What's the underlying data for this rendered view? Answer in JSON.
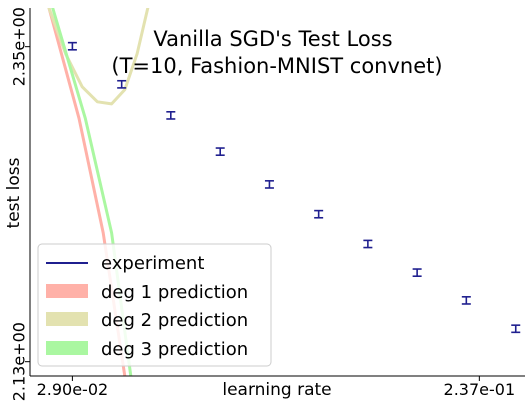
{
  "chart_data": {
    "type": "scatter",
    "title": "Vanilla SGD's Test Loss",
    "subtitle": "(T=10, Fashion-MNIST convnet)",
    "xlabel": "learning rate",
    "ylabel": "test loss",
    "x_scale": "log",
    "xlim": [
      0.0233,
      0.3
    ],
    "ylim": [
      2.12,
      2.377
    ],
    "x_ticks": [
      {
        "value": 0.029,
        "label": "2.90e-02"
      },
      {
        "value": 0.237,
        "label": "2.37e-01"
      }
    ],
    "y_ticks": [
      {
        "value": 2.13,
        "label": "2.13e+00"
      },
      {
        "value": 2.35,
        "label": "2.35e+00"
      }
    ],
    "grid": false,
    "legend_position": "bottom-left",
    "legend": [
      {
        "label": "experiment",
        "color": "#1f1f8f",
        "style": "line"
      },
      {
        "label": "deg 1 prediction",
        "color": "#ffb1a8",
        "style": "patch"
      },
      {
        "label": "deg 2 prediction",
        "color": "#e3e2b0",
        "style": "patch"
      },
      {
        "label": "deg 3 prediction",
        "color": "#aaf7a1",
        "style": "patch"
      }
    ],
    "series": [
      {
        "name": "experiment",
        "kind": "errorbar",
        "color": "#1f1f8f",
        "points": [
          {
            "x": 0.029,
            "y": 2.3503,
            "err": 0.0025
          },
          {
            "x": 0.0374,
            "y": 2.3237,
            "err": 0.0025
          },
          {
            "x": 0.0482,
            "y": 2.302,
            "err": 0.0025
          },
          {
            "x": 0.0622,
            "y": 2.2767,
            "err": 0.0025
          },
          {
            "x": 0.0802,
            "y": 2.2538,
            "err": 0.0025
          },
          {
            "x": 0.1034,
            "y": 2.233,
            "err": 0.0025
          },
          {
            "x": 0.1333,
            "y": 2.2122,
            "err": 0.0025
          },
          {
            "x": 0.1719,
            "y": 2.1922,
            "err": 0.0025
          },
          {
            "x": 0.2216,
            "y": 2.1728,
            "err": 0.0025
          },
          {
            "x": 0.286,
            "y": 2.153,
            "err": 0.0025
          }
        ]
      },
      {
        "name": "deg 1 prediction",
        "kind": "curve",
        "color": "#ffb1a8",
        "points": [
          {
            "x": 0.0257,
            "y": 2.377
          },
          {
            "x": 0.03,
            "y": 2.3
          },
          {
            "x": 0.034,
            "y": 2.22
          },
          {
            "x": 0.038,
            "y": 2.12
          }
        ]
      },
      {
        "name": "deg 2 prediction",
        "kind": "curve",
        "color": "#e3e2b0",
        "points": [
          {
            "x": 0.0257,
            "y": 2.377
          },
          {
            "x": 0.028,
            "y": 2.345
          },
          {
            "x": 0.0305,
            "y": 2.322
          },
          {
            "x": 0.033,
            "y": 2.3115
          },
          {
            "x": 0.0355,
            "y": 2.31
          },
          {
            "x": 0.038,
            "y": 2.32
          },
          {
            "x": 0.0405,
            "y": 2.345
          },
          {
            "x": 0.0428,
            "y": 2.377
          }
        ]
      },
      {
        "name": "deg 3 prediction",
        "kind": "curve",
        "color": "#aaf7a1",
        "points": [
          {
            "x": 0.0262,
            "y": 2.377
          },
          {
            "x": 0.031,
            "y": 2.3
          },
          {
            "x": 0.0355,
            "y": 2.22
          },
          {
            "x": 0.0392,
            "y": 2.12
          }
        ]
      }
    ]
  }
}
